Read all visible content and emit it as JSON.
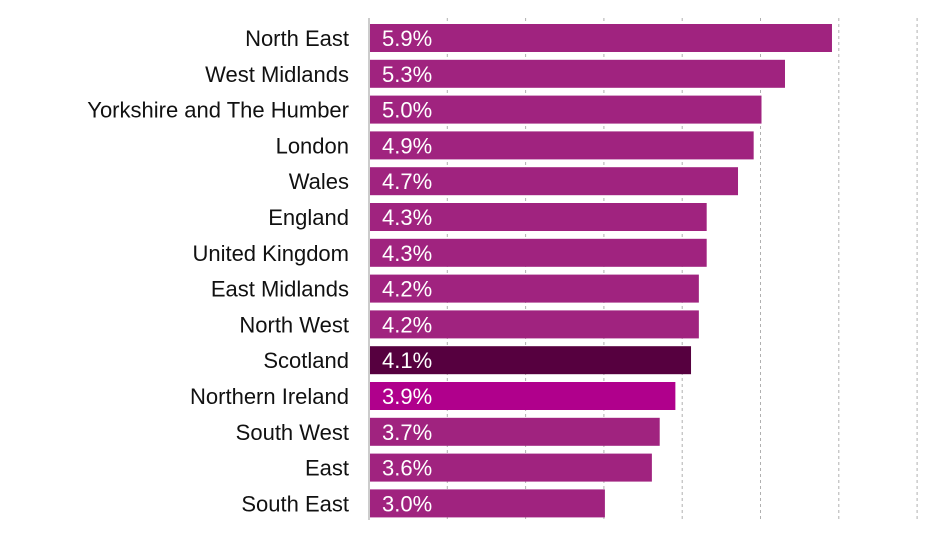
{
  "chart_data": {
    "type": "bar",
    "orientation": "horizontal",
    "title": "",
    "xlabel": "",
    "ylabel": "",
    "xlim": [
      0,
      7
    ],
    "grid": "vertical-dashed",
    "legend": "none",
    "categories": [
      "North East",
      "West Midlands",
      "Yorkshire and The Humber",
      "London",
      "Wales",
      "England",
      "United Kingdom",
      "East Midlands",
      "North West ",
      "Scotland",
      "Northern Ireland ",
      "South West",
      "East",
      "South East"
    ],
    "values": [
      5.9,
      5.3,
      5.0,
      4.9,
      4.7,
      4.3,
      4.3,
      4.2,
      4.2,
      4.1,
      3.9,
      3.7,
      3.6,
      3.0
    ],
    "value_labels": [
      "5.9%",
      "5.3%",
      "5.0%",
      "4.9%",
      "4.7%",
      "4.3%",
      "4.3%",
      "4.2%",
      "4.2%",
      "4.1%",
      "3.9%",
      "3.7%",
      "3.6%",
      "3.0%"
    ],
    "colors": {
      "default": "#a0237f",
      "Scotland": "#56003f",
      "Northern Ireland ": "#b0008c",
      "gridline": "#b0b0b0",
      "axis": "#999999"
    }
  }
}
